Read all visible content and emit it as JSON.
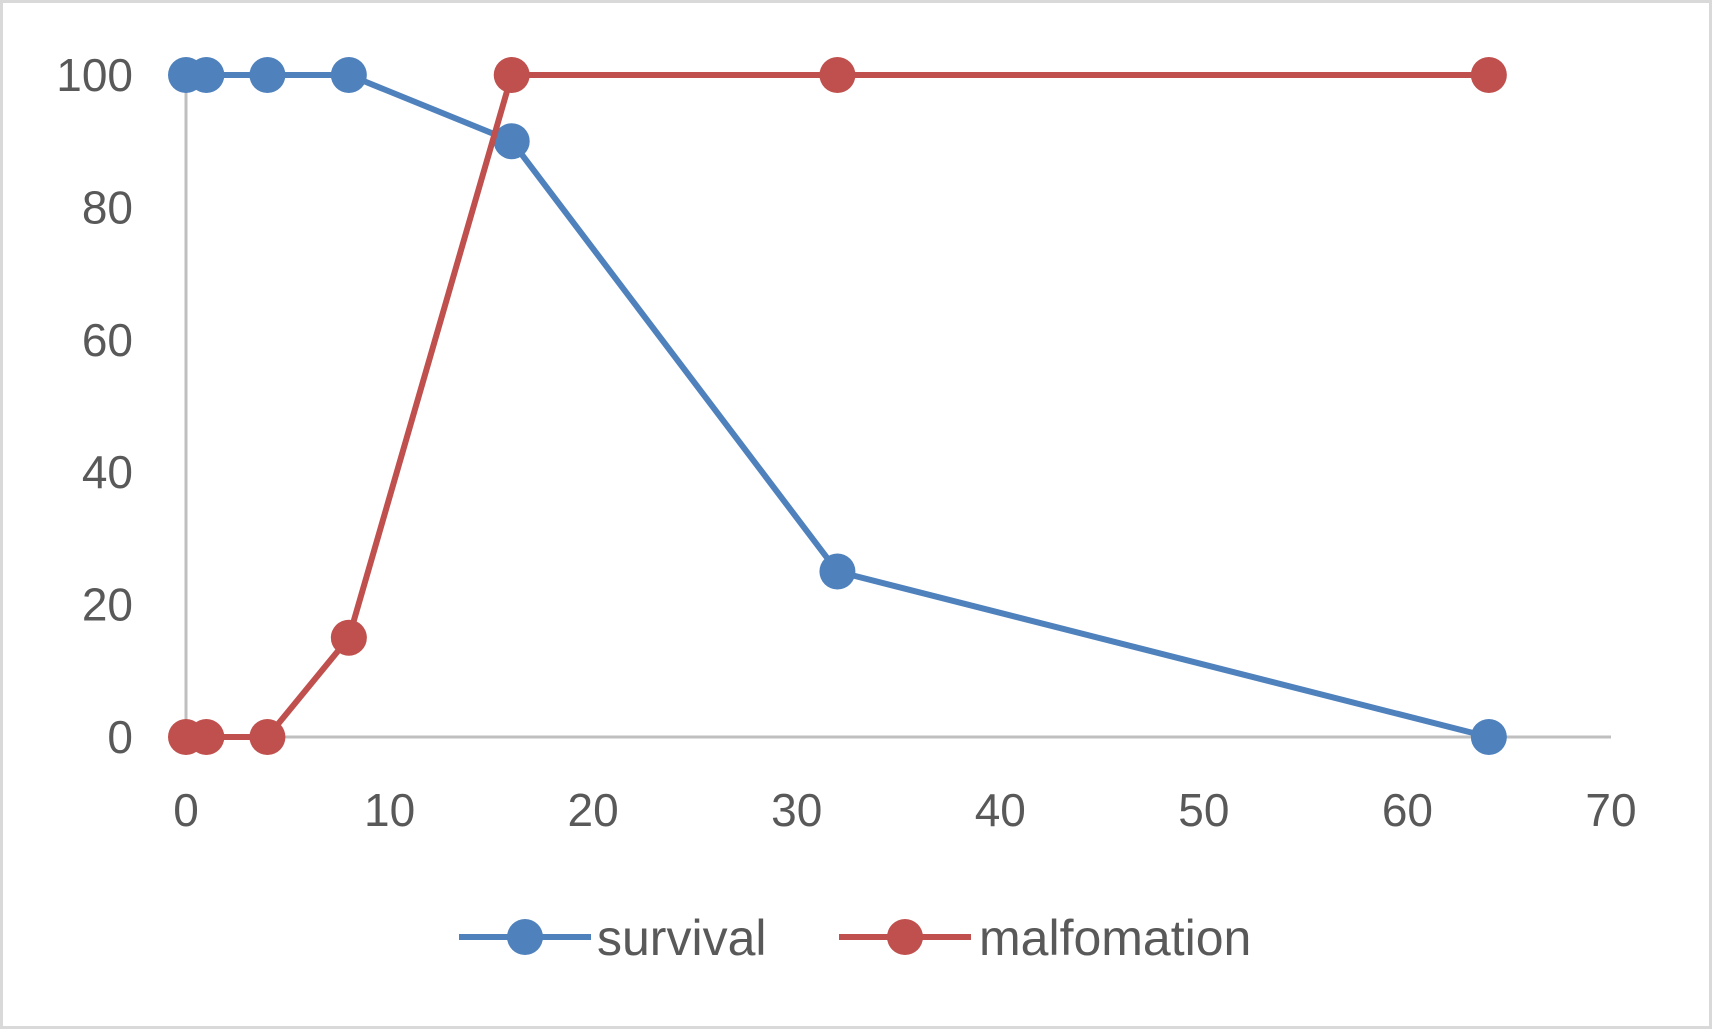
{
  "chart_data": {
    "type": "scatter",
    "title": "",
    "xlabel": "",
    "ylabel": "",
    "xlim": [
      0,
      70
    ],
    "ylim": [
      0,
      100
    ],
    "xticks": [
      0,
      10,
      20,
      30,
      40,
      50,
      60,
      70
    ],
    "yticks": [
      0,
      20,
      40,
      60,
      80,
      100
    ],
    "grid": false,
    "legend_position": "bottom",
    "series": [
      {
        "name": "survival",
        "color": "#4f81bd",
        "x": [
          0,
          1,
          4,
          8,
          16,
          32,
          64
        ],
        "y": [
          100,
          100,
          100,
          100,
          90,
          25,
          0
        ]
      },
      {
        "name": "malfomation",
        "color": "#c0504d",
        "x": [
          0,
          1,
          4,
          8,
          16,
          32,
          64
        ],
        "y": [
          0,
          0,
          0,
          15,
          100,
          100,
          100
        ]
      }
    ]
  }
}
